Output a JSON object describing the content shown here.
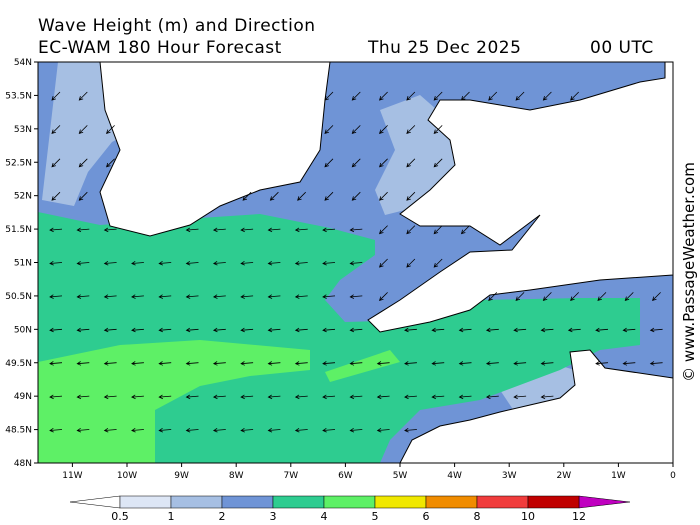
{
  "header": {
    "title": "Wave Height (m) and Direction",
    "model": "EC-WAM 180 Hour Forecast",
    "date": "Thu 25 Dec 2025",
    "time": "00 UTC"
  },
  "map": {
    "lat_labels": [
      "54N",
      "53.5N",
      "53N",
      "52.5N",
      "52N",
      "51.5N",
      "51N",
      "50.5N",
      "50N",
      "49.5N",
      "49N",
      "48.5N",
      "48N"
    ],
    "lon_labels": [
      "11W",
      "10W",
      "9W",
      "8W",
      "7W",
      "6W",
      "5W",
      "4W",
      "3W",
      "2W",
      "1W",
      "0"
    ]
  },
  "legend": {
    "labels": [
      "0.5",
      "1",
      "2",
      "3",
      "4",
      "5",
      "6",
      "8",
      "10",
      "12"
    ]
  },
  "credit": "© www.PassageWeather.com"
}
